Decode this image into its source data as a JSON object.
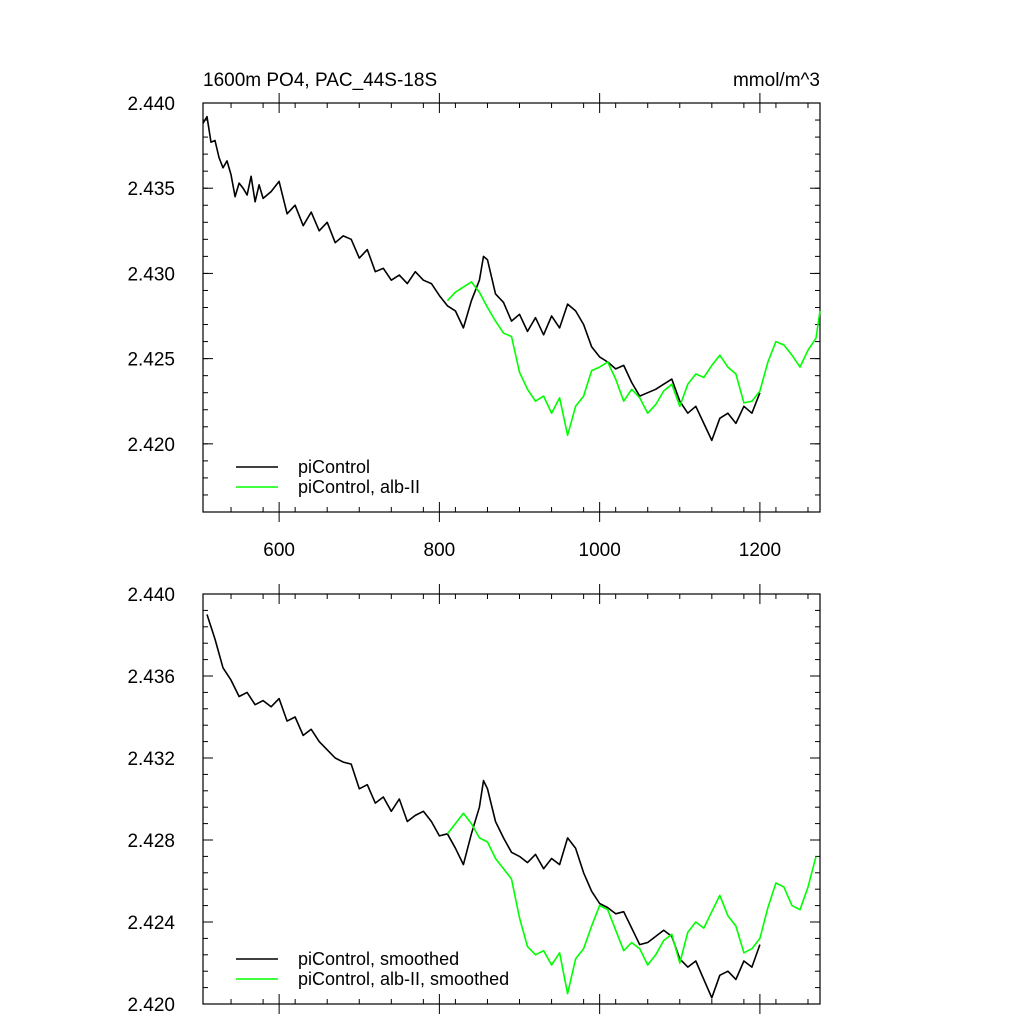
{
  "chart_data": [
    {
      "type": "line",
      "title": "1600m PO4, PAC_44S-18S",
      "units": "mmol/m^3",
      "xlim": [
        505,
        1275
      ],
      "ylim": [
        2.416,
        2.44
      ],
      "xticks": [
        600,
        800,
        1000,
        1200
      ],
      "xtick_labels": [
        "600",
        "800",
        "1000",
        "1200"
      ],
      "yticks": [
        2.42,
        2.425,
        2.43,
        2.435,
        2.44
      ],
      "ytick_labels": [
        "2.420",
        "2.425",
        "2.430",
        "2.435",
        "2.440"
      ],
      "show_xtick_labels": true,
      "legend_position": "bottom-left",
      "series": [
        {
          "name": "piControl",
          "color": "#000000",
          "x": [
            505,
            510,
            515,
            520,
            525,
            530,
            535,
            540,
            545,
            550,
            555,
            560,
            565,
            570,
            575,
            580,
            590,
            600,
            610,
            620,
            630,
            640,
            650,
            660,
            670,
            680,
            690,
            700,
            710,
            720,
            730,
            740,
            750,
            760,
            770,
            780,
            790,
            800,
            810,
            820,
            830,
            840,
            850,
            855,
            860,
            870,
            880,
            890,
            900,
            910,
            920,
            930,
            940,
            950,
            960,
            970,
            980,
            990,
            1000,
            1010,
            1020,
            1030,
            1040,
            1050,
            1060,
            1070,
            1080,
            1090,
            1100,
            1110,
            1120,
            1130,
            1140,
            1150,
            1160,
            1170,
            1180,
            1190,
            1200
          ],
          "y": [
            2.4388,
            2.4392,
            2.4377,
            2.4378,
            2.4368,
            2.4362,
            2.4366,
            2.4358,
            2.4345,
            2.4353,
            2.435,
            2.4346,
            2.4357,
            2.4342,
            2.4352,
            2.4344,
            2.4348,
            2.4354,
            2.4335,
            2.434,
            2.4328,
            2.4336,
            2.4325,
            2.433,
            2.4318,
            2.4322,
            2.432,
            2.4309,
            2.4314,
            2.4301,
            2.4303,
            2.4296,
            2.4299,
            2.4294,
            2.4301,
            2.4296,
            2.4294,
            2.4287,
            2.4281,
            2.4278,
            2.4268,
            2.4284,
            2.4296,
            2.431,
            2.4308,
            2.4288,
            2.4283,
            2.4272,
            2.4276,
            2.4266,
            2.4274,
            2.4264,
            2.4275,
            2.4268,
            2.4282,
            2.4278,
            2.427,
            2.4257,
            2.4251,
            2.4248,
            2.4244,
            2.4246,
            2.4236,
            2.4228,
            2.423,
            2.4232,
            2.4235,
            2.4238,
            2.4225,
            2.4218,
            2.4222,
            2.4212,
            2.4202,
            2.4215,
            2.4218,
            2.4212,
            2.4222,
            2.4218,
            2.423
          ]
        },
        {
          "name": "piControl, alb-II",
          "color": "#00ff00",
          "x": [
            810,
            820,
            830,
            840,
            850,
            860,
            870,
            880,
            890,
            900,
            910,
            920,
            930,
            940,
            950,
            960,
            970,
            980,
            990,
            1000,
            1010,
            1020,
            1030,
            1040,
            1050,
            1060,
            1070,
            1080,
            1090,
            1100,
            1110,
            1120,
            1130,
            1140,
            1150,
            1160,
            1170,
            1180,
            1190,
            1200,
            1210,
            1220,
            1230,
            1240,
            1250,
            1260,
            1270,
            1275
          ],
          "y": [
            2.4284,
            2.4289,
            2.4292,
            2.4295,
            2.4289,
            2.428,
            2.4272,
            2.4265,
            2.4263,
            2.4242,
            2.4232,
            2.4225,
            2.4228,
            2.4218,
            2.4227,
            2.4205,
            2.4222,
            2.4228,
            2.4243,
            2.4245,
            2.4248,
            2.4238,
            2.4225,
            2.4232,
            2.4227,
            2.4218,
            2.4223,
            2.4231,
            2.4235,
            2.4222,
            2.4235,
            2.4241,
            2.4239,
            2.4246,
            2.4252,
            2.4245,
            2.4241,
            2.4224,
            2.4225,
            2.4231,
            2.4248,
            2.426,
            2.4258,
            2.4252,
            2.4245,
            2.4255,
            2.4262,
            2.4278
          ]
        }
      ]
    },
    {
      "type": "line",
      "xlim": [
        505,
        1275
      ],
      "ylim": [
        2.42,
        2.44
      ],
      "xticks": [
        600,
        800,
        1000,
        1200
      ],
      "xtick_labels": [],
      "yticks": [
        2.42,
        2.424,
        2.428,
        2.432,
        2.436,
        2.44
      ],
      "ytick_labels": [
        "2.420",
        "2.424",
        "2.428",
        "2.432",
        "2.436",
        "2.440"
      ],
      "show_xtick_labels": false,
      "legend_position": "bottom-left",
      "series": [
        {
          "name": "piControl, smoothed",
          "color": "#000000",
          "x": [
            510,
            520,
            530,
            540,
            550,
            560,
            570,
            580,
            590,
            600,
            610,
            620,
            630,
            640,
            650,
            660,
            670,
            680,
            690,
            700,
            710,
            720,
            730,
            740,
            750,
            760,
            770,
            780,
            790,
            800,
            810,
            820,
            830,
            840,
            850,
            855,
            860,
            870,
            880,
            890,
            900,
            910,
            920,
            930,
            940,
            950,
            960,
            970,
            980,
            990,
            1000,
            1010,
            1020,
            1030,
            1040,
            1050,
            1060,
            1070,
            1080,
            1090,
            1100,
            1110,
            1120,
            1130,
            1140,
            1150,
            1160,
            1170,
            1180,
            1190,
            1200
          ],
          "y": [
            2.439,
            2.4378,
            2.4364,
            2.4358,
            2.435,
            2.4352,
            2.4346,
            2.4348,
            2.4345,
            2.4349,
            2.4338,
            2.434,
            2.4331,
            2.4334,
            2.4328,
            2.4324,
            2.432,
            2.4318,
            2.4317,
            2.4305,
            2.4307,
            2.4298,
            2.4301,
            2.4294,
            2.43,
            2.4289,
            2.4292,
            2.4294,
            2.4289,
            2.4282,
            2.4283,
            2.4276,
            2.4268,
            2.4283,
            2.4296,
            2.4309,
            2.4305,
            2.4289,
            2.4281,
            2.4274,
            2.4272,
            2.4269,
            2.4273,
            2.4266,
            2.4271,
            2.4268,
            2.4281,
            2.4276,
            2.4264,
            2.4255,
            2.4249,
            2.4247,
            2.4244,
            2.4245,
            2.4237,
            2.4229,
            2.423,
            2.4233,
            2.4236,
            2.4233,
            2.4222,
            2.4218,
            2.4221,
            2.4212,
            2.4203,
            2.4214,
            2.4216,
            2.4212,
            2.4221,
            2.4218,
            2.4229
          ]
        },
        {
          "name": "piControl, alb-II, smoothed",
          "color": "#00ff00",
          "x": [
            810,
            820,
            830,
            840,
            850,
            860,
            870,
            880,
            890,
            900,
            910,
            920,
            930,
            940,
            950,
            960,
            970,
            980,
            990,
            1000,
            1010,
            1020,
            1030,
            1040,
            1050,
            1060,
            1070,
            1080,
            1090,
            1100,
            1110,
            1120,
            1130,
            1140,
            1150,
            1160,
            1170,
            1180,
            1190,
            1200,
            1210,
            1220,
            1230,
            1240,
            1250,
            1260,
            1270
          ],
          "y": [
            2.4283,
            2.4288,
            2.4293,
            2.4288,
            2.4281,
            2.4279,
            2.4271,
            2.4266,
            2.4261,
            2.4242,
            2.4228,
            2.4224,
            2.4226,
            2.4219,
            2.4225,
            2.4205,
            2.4222,
            2.4227,
            2.4238,
            2.4248,
            2.4246,
            2.4236,
            2.4226,
            2.423,
            2.4227,
            2.4219,
            2.4224,
            2.4231,
            2.4234,
            2.422,
            2.4235,
            2.424,
            2.4237,
            2.4245,
            2.4253,
            2.4243,
            2.4238,
            2.4225,
            2.4227,
            2.4232,
            2.4247,
            2.4259,
            2.4257,
            2.4248,
            2.4246,
            2.4257,
            2.4272
          ]
        }
      ]
    }
  ]
}
